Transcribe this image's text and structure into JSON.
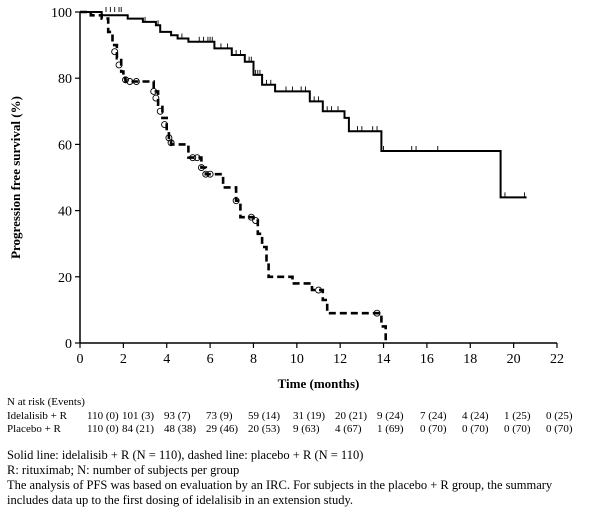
{
  "chart_data": {
    "type": "line",
    "xlabel": "Time (months)",
    "ylabel": "Progression free survival (%)",
    "xlim": [
      0,
      22
    ],
    "ylim": [
      0,
      100
    ],
    "xticks": [
      0,
      2,
      4,
      6,
      8,
      10,
      12,
      14,
      16,
      18,
      20,
      22
    ],
    "yticks": [
      0,
      20,
      40,
      60,
      80,
      100
    ],
    "grid": false,
    "legend": "none",
    "series": [
      {
        "style": "solid",
        "steps": [
          [
            0,
            100
          ],
          [
            1.0,
            100
          ],
          [
            1.0,
            99
          ],
          [
            2.2,
            99
          ],
          [
            2.2,
            98
          ],
          [
            2.9,
            98
          ],
          [
            2.9,
            97
          ],
          [
            3.5,
            97
          ],
          [
            3.5,
            96
          ],
          [
            3.7,
            96
          ],
          [
            3.7,
            94
          ],
          [
            4.2,
            94
          ],
          [
            4.2,
            93
          ],
          [
            4.5,
            93
          ],
          [
            4.5,
            92
          ],
          [
            5.0,
            92
          ],
          [
            5.0,
            91
          ],
          [
            6.2,
            91
          ],
          [
            6.2,
            89
          ],
          [
            7.0,
            89
          ],
          [
            7.0,
            87
          ],
          [
            7.6,
            87
          ],
          [
            7.6,
            85
          ],
          [
            8.0,
            85
          ],
          [
            8.0,
            81
          ],
          [
            8.4,
            81
          ],
          [
            8.4,
            78
          ],
          [
            9.0,
            78
          ],
          [
            9.0,
            76
          ],
          [
            10.6,
            76
          ],
          [
            10.6,
            73
          ],
          [
            11.2,
            73
          ],
          [
            11.2,
            70
          ],
          [
            12.2,
            70
          ],
          [
            12.2,
            68
          ],
          [
            12.4,
            68
          ],
          [
            12.4,
            64
          ],
          [
            13.9,
            64
          ],
          [
            13.9,
            58
          ],
          [
            19.4,
            58
          ],
          [
            19.4,
            44
          ],
          [
            20.6,
            44
          ]
        ],
        "censors": [
          [
            1.2,
            100
          ],
          [
            1.4,
            100
          ],
          [
            1.6,
            100
          ],
          [
            1.8,
            100
          ],
          [
            1.9,
            100
          ],
          [
            3.0,
            97
          ],
          [
            3.6,
            96
          ],
          [
            4.7,
            92
          ],
          [
            5.5,
            91
          ],
          [
            5.7,
            91
          ],
          [
            5.9,
            91
          ],
          [
            6.0,
            91
          ],
          [
            6.1,
            91
          ],
          [
            6.5,
            89
          ],
          [
            6.8,
            89
          ],
          [
            7.2,
            87
          ],
          [
            7.4,
            87
          ],
          [
            7.8,
            85
          ],
          [
            7.9,
            85
          ],
          [
            8.1,
            81
          ],
          [
            8.2,
            81
          ],
          [
            8.3,
            81
          ],
          [
            8.6,
            78
          ],
          [
            8.8,
            78
          ],
          [
            9.5,
            76
          ],
          [
            9.8,
            76
          ],
          [
            10.2,
            76
          ],
          [
            10.4,
            76
          ],
          [
            10.8,
            73
          ],
          [
            11.0,
            73
          ],
          [
            11.4,
            70
          ],
          [
            11.6,
            70
          ],
          [
            11.9,
            70
          ],
          [
            12.8,
            64
          ],
          [
            13.0,
            64
          ],
          [
            13.5,
            64
          ],
          [
            13.7,
            64
          ],
          [
            14.0,
            58
          ],
          [
            15.3,
            58
          ],
          [
            15.5,
            58
          ],
          [
            16.5,
            58
          ],
          [
            19.6,
            44
          ],
          [
            20.5,
            44
          ]
        ]
      },
      {
        "style": "dashed",
        "steps": [
          [
            0,
            100
          ],
          [
            0.5,
            100
          ],
          [
            0.5,
            99
          ],
          [
            1.0,
            99
          ],
          [
            1.0,
            98
          ],
          [
            1.3,
            98
          ],
          [
            1.3,
            94
          ],
          [
            1.5,
            94
          ],
          [
            1.5,
            90
          ],
          [
            1.7,
            90
          ],
          [
            1.7,
            86
          ],
          [
            1.9,
            86
          ],
          [
            1.9,
            82
          ],
          [
            2.0,
            82
          ],
          [
            2.0,
            80
          ],
          [
            2.1,
            80
          ],
          [
            2.1,
            79
          ],
          [
            3.4,
            79
          ],
          [
            3.4,
            76
          ],
          [
            3.6,
            76
          ],
          [
            3.6,
            72
          ],
          [
            3.8,
            72
          ],
          [
            3.8,
            68
          ],
          [
            4.0,
            68
          ],
          [
            4.0,
            64
          ],
          [
            4.1,
            64
          ],
          [
            4.1,
            61
          ],
          [
            4.2,
            61
          ],
          [
            4.2,
            60
          ],
          [
            5.0,
            60
          ],
          [
            5.0,
            56
          ],
          [
            5.6,
            56
          ],
          [
            5.6,
            53
          ],
          [
            5.8,
            53
          ],
          [
            5.8,
            51
          ],
          [
            6.6,
            51
          ],
          [
            6.6,
            47
          ],
          [
            7.2,
            47
          ],
          [
            7.2,
            43
          ],
          [
            7.4,
            43
          ],
          [
            7.4,
            38
          ],
          [
            8.0,
            38
          ],
          [
            8.0,
            37
          ],
          [
            8.2,
            37
          ],
          [
            8.2,
            33
          ],
          [
            8.4,
            33
          ],
          [
            8.4,
            29
          ],
          [
            8.6,
            29
          ],
          [
            8.6,
            25
          ],
          [
            8.7,
            25
          ],
          [
            8.7,
            20
          ],
          [
            9.8,
            20
          ],
          [
            9.8,
            18
          ],
          [
            10.7,
            18
          ],
          [
            10.7,
            16
          ],
          [
            11.2,
            16
          ],
          [
            11.2,
            13
          ],
          [
            11.4,
            13
          ],
          [
            11.4,
            9
          ],
          [
            13.9,
            9
          ],
          [
            13.9,
            5
          ],
          [
            14.1,
            5
          ],
          [
            14.1,
            0
          ]
        ],
        "censors": [
          [
            1.6,
            88
          ],
          [
            1.8,
            84
          ],
          [
            2.1,
            79.5
          ],
          [
            2.3,
            79
          ],
          [
            2.6,
            79
          ],
          [
            3.4,
            76
          ],
          [
            3.5,
            74
          ],
          [
            3.7,
            70
          ],
          [
            3.9,
            66
          ],
          [
            4.1,
            62
          ],
          [
            4.2,
            60.5
          ],
          [
            5.2,
            56
          ],
          [
            5.4,
            56
          ],
          [
            5.6,
            53
          ],
          [
            5.8,
            51
          ],
          [
            6.0,
            51
          ],
          [
            7.2,
            43
          ],
          [
            7.9,
            38
          ],
          [
            8.1,
            37
          ],
          [
            11.0,
            16
          ],
          [
            13.7,
            9
          ]
        ]
      }
    ]
  },
  "risk": {
    "title": "N at risk (Events)",
    "rows": [
      {
        "name": "Idelalisib + R",
        "cells": [
          "110 (0)",
          "101 (3)",
          "93 (7)",
          "73 (9)",
          "59 (14)",
          "31 (19)",
          "20 (21)",
          "9 (24)",
          "7 (24)",
          "4 (24)",
          "1 (25)",
          "0 (25)"
        ]
      },
      {
        "name": "Placebo + R",
        "cells": [
          "110 (0)",
          "84 (21)",
          "48 (38)",
          "29 (46)",
          "20 (53)",
          "9 (63)",
          "4 (67)",
          "1 (69)",
          "0 (70)",
          "0 (70)",
          "0 (70)",
          "0 (70)"
        ]
      }
    ]
  },
  "notes": [
    "Solid line: idelalisib + R (N = 110), dashed line: placebo + R (N = 110)",
    "R: rituximab; N: number of subjects per group",
    "The analysis of PFS was based on evaluation by an IRC.  For subjects in the placebo + R group, the summary",
    "includes data up to the first dosing of idelalisib in an extension study."
  ]
}
